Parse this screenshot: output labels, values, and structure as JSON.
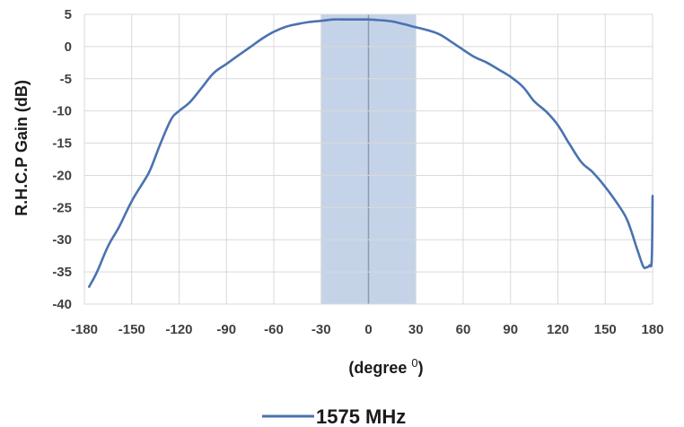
{
  "chart_data": {
    "type": "line",
    "xlabel": "(degree ",
    "xlabel_sup": "0",
    "xlabel_close": ")",
    "ylabel": "R.H.C.P Gain (dB)",
    "xlim": [
      -180,
      180
    ],
    "ylim": [
      -40,
      5
    ],
    "xticks": [
      -180,
      -150,
      -120,
      -90,
      -60,
      -30,
      0,
      30,
      60,
      90,
      120,
      150,
      180
    ],
    "yticks": [
      5,
      0,
      -5,
      -10,
      -15,
      -20,
      -25,
      -30,
      -35,
      -40
    ],
    "grid": true,
    "legend_position": "bottom-center",
    "highlight_band": {
      "x": [
        -30,
        30
      ],
      "color": "#c5d3e8"
    },
    "colors": {
      "series": "#4a72b0",
      "grid": "#d9d9d9",
      "band": "#c5d3e8",
      "center_line": "#8d9aab"
    },
    "series": [
      {
        "name": "1575 MHz",
        "x": [
          -177,
          -172,
          -165,
          -158,
          -150,
          -142,
          -138,
          -132,
          -125,
          -120,
          -113,
          -105,
          -98,
          -90,
          -82,
          -75,
          -67,
          -60,
          -52,
          -45,
          -38,
          -30,
          -22,
          -15,
          -7,
          0,
          7,
          15,
          22,
          30,
          38,
          45,
          52,
          60,
          67,
          75,
          82,
          90,
          98,
          105,
          113,
          120,
          127,
          135,
          142,
          150,
          158,
          164,
          170,
          174,
          176,
          178,
          179.5,
          180
        ],
        "y": [
          -37.3,
          -35,
          -31,
          -28,
          -24,
          -20.8,
          -19,
          -15.2,
          -11.3,
          -10,
          -8.6,
          -6.2,
          -4.1,
          -2.7,
          -1.3,
          -0.1,
          1.3,
          2.3,
          3.1,
          3.5,
          3.8,
          4.0,
          4.2,
          4.2,
          4.2,
          4.2,
          4.1,
          3.9,
          3.5,
          3.0,
          2.5,
          1.9,
          0.8,
          -0.5,
          -1.6,
          -2.5,
          -3.5,
          -4.7,
          -6.3,
          -8.5,
          -10.2,
          -12.2,
          -15,
          -18,
          -19.5,
          -21.8,
          -24.5,
          -27,
          -31.3,
          -34.1,
          -34.3,
          -34,
          -33,
          -23.2
        ]
      }
    ]
  }
}
